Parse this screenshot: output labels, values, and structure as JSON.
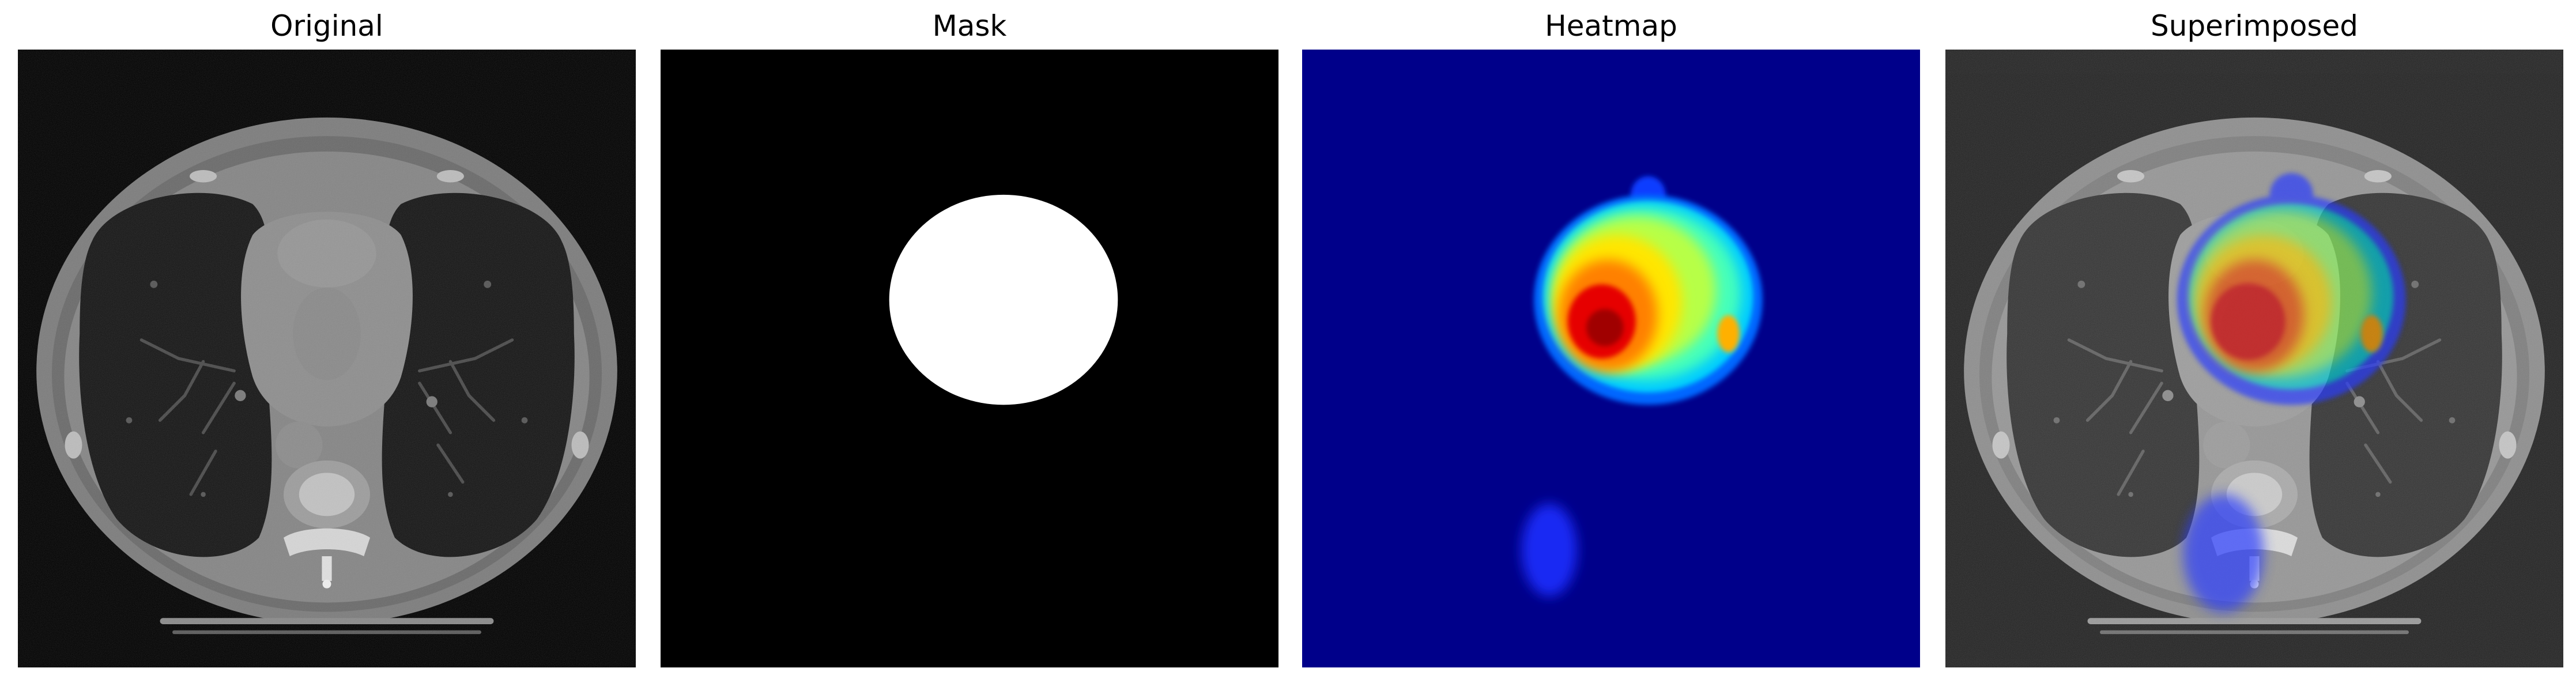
{
  "figure": {
    "panels": [
      {
        "title": "Original",
        "image_desc": "grayscale-axial-chest-ct"
      },
      {
        "title": "Mask",
        "image_desc": "binary-mask-white-circle"
      },
      {
        "title": "Heatmap",
        "image_desc": "jet-colormap-heatmap"
      },
      {
        "title": "Superimposed",
        "image_desc": "ct-with-heatmap-overlay"
      }
    ],
    "colors": {
      "background": "#ffffff",
      "mask_background": "#000000",
      "mask_foreground": "#ffffff",
      "heatmap_base": "#00008a"
    }
  }
}
